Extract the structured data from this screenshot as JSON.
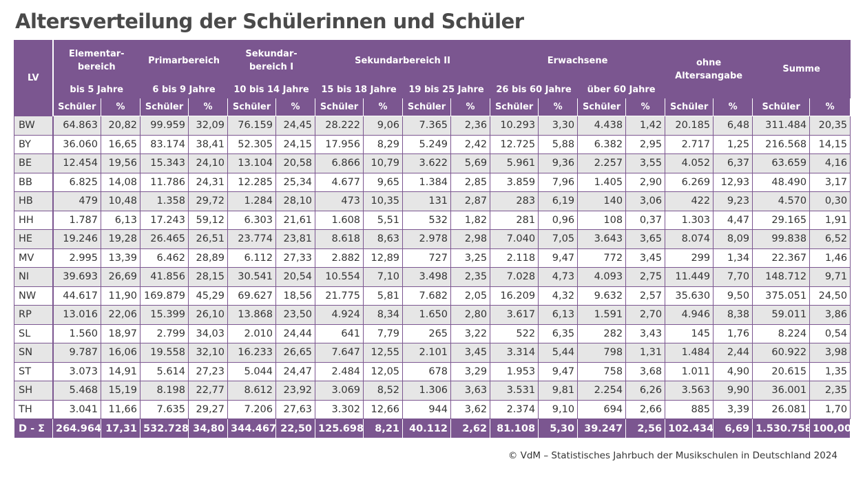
{
  "title": "Altersverteilung der Schülerinnen und Schüler",
  "header": {
    "lv": "LV",
    "groups": [
      "Elementar-\nbereich",
      "Primarbereich",
      "Sekundar-\nbereich I",
      "Sekundarbereich II",
      "Erwachsene",
      "ohne\nAltersangabe",
      "Summe"
    ],
    "age_ranges": [
      "bis 5 Jahre",
      "6 bis 9 Jahre",
      "10 bis 14 Jahre",
      "15 bis 18 Jahre",
      "19 bis 25 Jahre",
      "26 bis 60 Jahre",
      "über 60 Jahre"
    ],
    "schueler_label": "Schüler",
    "percent_label": "%"
  },
  "rows": [
    [
      "BW",
      "64.863",
      "20,82",
      "99.959",
      "32,09",
      "76.159",
      "24,45",
      "28.222",
      "9,06",
      "7.365",
      "2,36",
      "10.293",
      "3,30",
      "4.438",
      "1,42",
      "20.185",
      "6,48",
      "311.484",
      "20,35"
    ],
    [
      "BY",
      "36.060",
      "16,65",
      "83.174",
      "38,41",
      "52.305",
      "24,15",
      "17.956",
      "8,29",
      "5.249",
      "2,42",
      "12.725",
      "5,88",
      "6.382",
      "2,95",
      "2.717",
      "1,25",
      "216.568",
      "14,15"
    ],
    [
      "BE",
      "12.454",
      "19,56",
      "15.343",
      "24,10",
      "13.104",
      "20,58",
      "6.866",
      "10,79",
      "3.622",
      "5,69",
      "5.961",
      "9,36",
      "2.257",
      "3,55",
      "4.052",
      "6,37",
      "63.659",
      "4,16"
    ],
    [
      "BB",
      "6.825",
      "14,08",
      "11.786",
      "24,31",
      "12.285",
      "25,34",
      "4.677",
      "9,65",
      "1.384",
      "2,85",
      "3.859",
      "7,96",
      "1.405",
      "2,90",
      "6.269",
      "12,93",
      "48.490",
      "3,17"
    ],
    [
      "HB",
      "479",
      "10,48",
      "1.358",
      "29,72",
      "1.284",
      "28,10",
      "473",
      "10,35",
      "131",
      "2,87",
      "283",
      "6,19",
      "140",
      "3,06",
      "422",
      "9,23",
      "4.570",
      "0,30"
    ],
    [
      "HH",
      "1.787",
      "6,13",
      "17.243",
      "59,12",
      "6.303",
      "21,61",
      "1.608",
      "5,51",
      "532",
      "1,82",
      "281",
      "0,96",
      "108",
      "0,37",
      "1.303",
      "4,47",
      "29.165",
      "1,91"
    ],
    [
      "HE",
      "19.246",
      "19,28",
      "26.465",
      "26,51",
      "23.774",
      "23,81",
      "8.618",
      "8,63",
      "2.978",
      "2,98",
      "7.040",
      "7,05",
      "3.643",
      "3,65",
      "8.074",
      "8,09",
      "99.838",
      "6,52"
    ],
    [
      "MV",
      "2.995",
      "13,39",
      "6.462",
      "28,89",
      "6.112",
      "27,33",
      "2.882",
      "12,89",
      "727",
      "3,25",
      "2.118",
      "9,47",
      "772",
      "3,45",
      "299",
      "1,34",
      "22.367",
      "1,46"
    ],
    [
      "NI",
      "39.693",
      "26,69",
      "41.856",
      "28,15",
      "30.541",
      "20,54",
      "10.554",
      "7,10",
      "3.498",
      "2,35",
      "7.028",
      "4,73",
      "4.093",
      "2,75",
      "11.449",
      "7,70",
      "148.712",
      "9,71"
    ],
    [
      "NW",
      "44.617",
      "11,90",
      "169.879",
      "45,29",
      "69.627",
      "18,56",
      "21.775",
      "5,81",
      "7.682",
      "2,05",
      "16.209",
      "4,32",
      "9.632",
      "2,57",
      "35.630",
      "9,50",
      "375.051",
      "24,50"
    ],
    [
      "RP",
      "13.016",
      "22,06",
      "15.399",
      "26,10",
      "13.868",
      "23,50",
      "4.924",
      "8,34",
      "1.650",
      "2,80",
      "3.617",
      "6,13",
      "1.591",
      "2,70",
      "4.946",
      "8,38",
      "59.011",
      "3,86"
    ],
    [
      "SL",
      "1.560",
      "18,97",
      "2.799",
      "34,03",
      "2.010",
      "24,44",
      "641",
      "7,79",
      "265",
      "3,22",
      "522",
      "6,35",
      "282",
      "3,43",
      "145",
      "1,76",
      "8.224",
      "0,54"
    ],
    [
      "SN",
      "9.787",
      "16,06",
      "19.558",
      "32,10",
      "16.233",
      "26,65",
      "7.647",
      "12,55",
      "2.101",
      "3,45",
      "3.314",
      "5,44",
      "798",
      "1,31",
      "1.484",
      "2,44",
      "60.922",
      "3,98"
    ],
    [
      "ST",
      "3.073",
      "14,91",
      "5.614",
      "27,23",
      "5.044",
      "24,47",
      "2.484",
      "12,05",
      "678",
      "3,29",
      "1.953",
      "9,47",
      "758",
      "3,68",
      "1.011",
      "4,90",
      "20.615",
      "1,35"
    ],
    [
      "SH",
      "5.468",
      "15,19",
      "8.198",
      "22,77",
      "8.612",
      "23,92",
      "3.069",
      "8,52",
      "1.306",
      "3,63",
      "3.531",
      "9,81",
      "2.254",
      "6,26",
      "3.563",
      "9,90",
      "36.001",
      "2,35"
    ],
    [
      "TH",
      "3.041",
      "11,66",
      "7.635",
      "29,27",
      "7.206",
      "27,63",
      "3.302",
      "12,66",
      "944",
      "3,62",
      "2.374",
      "9,10",
      "694",
      "2,66",
      "885",
      "3,39",
      "26.081",
      "1,70"
    ]
  ],
  "total": [
    "D - Σ",
    "264.964",
    "17,31",
    "532.728",
    "34,80",
    "344.467",
    "22,50",
    "125.698",
    "8,21",
    "40.112",
    "2,62",
    "81.108",
    "5,30",
    "39.247",
    "2,56",
    "102.434",
    "6,69",
    "1.530.758",
    "100,00"
  ],
  "footer": "© VdM – Statistisches Jahrbuch der Musikschulen in Deutschland 2024",
  "colors": {
    "header_bg": "#7b5690",
    "row_alt_bg": "#e6e6e6",
    "title_text": "#4a4a4a"
  }
}
